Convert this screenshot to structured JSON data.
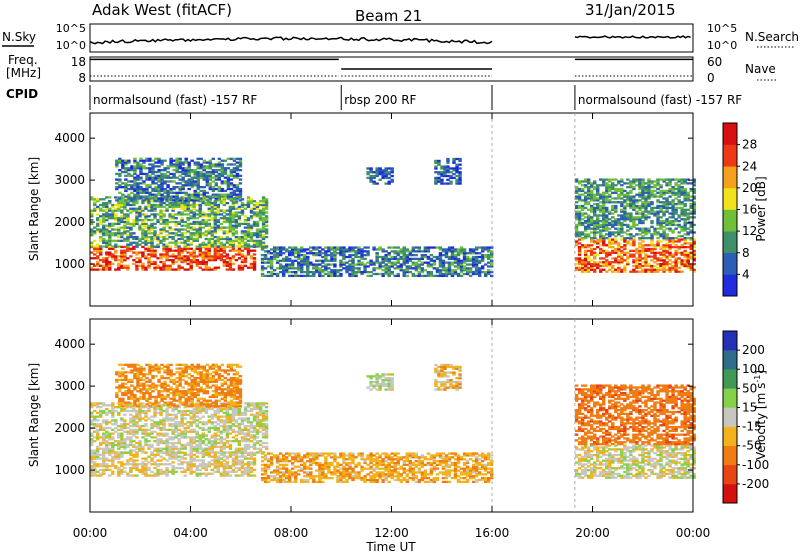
{
  "header": {
    "station": "Adak West (fitACF)",
    "beam": "Beam 21",
    "date": "31/Jan/2015"
  },
  "ticks": {
    "time": [
      "00:00",
      "04:00",
      "08:00",
      "12:00",
      "16:00",
      "20:00",
      "00:00"
    ],
    "range": [
      "1000",
      "2000",
      "3000",
      "4000"
    ],
    "nsky": [
      "10^5",
      "10^0"
    ],
    "nsearch": [
      "10^5",
      "10^0"
    ],
    "freq": [
      "18",
      "8"
    ],
    "nave": [
      "60",
      "0"
    ],
    "power": [
      "4",
      "8",
      "12",
      "16",
      "20",
      "24",
      "28"
    ],
    "velocity": [
      "200",
      "100",
      "50",
      "15",
      "-15",
      "-50",
      "-100",
      "-200"
    ]
  },
  "labels": {
    "nsky": "N.Sky",
    "nsearch": "N.Search",
    "freq_l1": "Freq.",
    "freq_l2": "[MHz]",
    "nave": "Nave",
    "cpid": "CPID",
    "slant_range": "Slant Range [km]",
    "time_ut": "Time UT",
    "power": "Power [dB]",
    "velocity_pre": "Velocity [m s",
    "velocity_exp": "-1",
    "velocity_post": "]"
  },
  "cpid_segments": [
    {
      "label": "normalsound (fast) -157 RF",
      "start": 0,
      "end": 9.9
    },
    {
      "label": "rbsp 200 RF",
      "start": 10,
      "end": 16
    },
    {
      "label": "normalsound (fast) -157 RF",
      "start": 19.3,
      "end": 24
    }
  ],
  "chart_data": {
    "type": "heatmap",
    "x_unit": "hours UT",
    "xlim": [
      0,
      24
    ],
    "ylim_km": [
      0,
      4600
    ],
    "gap_hours": [
      16,
      19.3
    ],
    "power_colorbar": {
      "values": [
        4,
        8,
        12,
        16,
        20,
        24,
        28
      ],
      "colors": [
        "#1f2bdc",
        "#2b5fb5",
        "#3f8f6a",
        "#6fbf3a",
        "#f2e21a",
        "#f5a01a",
        "#ee3a14",
        "#d90f0f"
      ]
    },
    "velocity_colorbar": {
      "values": [
        200,
        100,
        50,
        15,
        -15,
        -50,
        -100,
        -200
      ],
      "colors": [
        "#2231b8",
        "#2e6e8a",
        "#3e9a55",
        "#86d14a",
        "#c7c7c0",
        "#f2b21c",
        "#ef7d14",
        "#e84515",
        "#d40f0f"
      ]
    },
    "echo_regions": [
      {
        "t": [
          0.0,
          6.5
        ],
        "r": [
          850,
          1400
        ],
        "power": 26,
        "velocity": -10
      },
      {
        "t": [
          0.0,
          7.0
        ],
        "r": [
          1400,
          2600
        ],
        "power": 12,
        "velocity": 0
      },
      {
        "t": [
          1.0,
          6.0
        ],
        "r": [
          2500,
          3500
        ],
        "power": 8,
        "velocity": -60
      },
      {
        "t": [
          6.8,
          16.0
        ],
        "r": [
          700,
          1400
        ],
        "power": 8,
        "velocity": -40
      },
      {
        "t": [
          11.0,
          12.0
        ],
        "r": [
          2900,
          3300
        ],
        "power": 6,
        "velocity": 10
      },
      {
        "t": [
          13.7,
          14.7
        ],
        "r": [
          2900,
          3500
        ],
        "power": 6,
        "velocity": -30
      },
      {
        "t": [
          19.3,
          24.0
        ],
        "r": [
          800,
          1600
        ],
        "power": 24,
        "velocity": 0
      },
      {
        "t": [
          19.3,
          24.0
        ],
        "r": [
          1600,
          3000
        ],
        "power": 10,
        "velocity": -80
      }
    ],
    "freq_mhz": [
      {
        "t": [
          0,
          9.9
        ],
        "value": 17
      },
      {
        "t": [
          10,
          16
        ],
        "value": 13
      },
      {
        "t": [
          19.3,
          24
        ],
        "value": 17
      }
    ]
  }
}
